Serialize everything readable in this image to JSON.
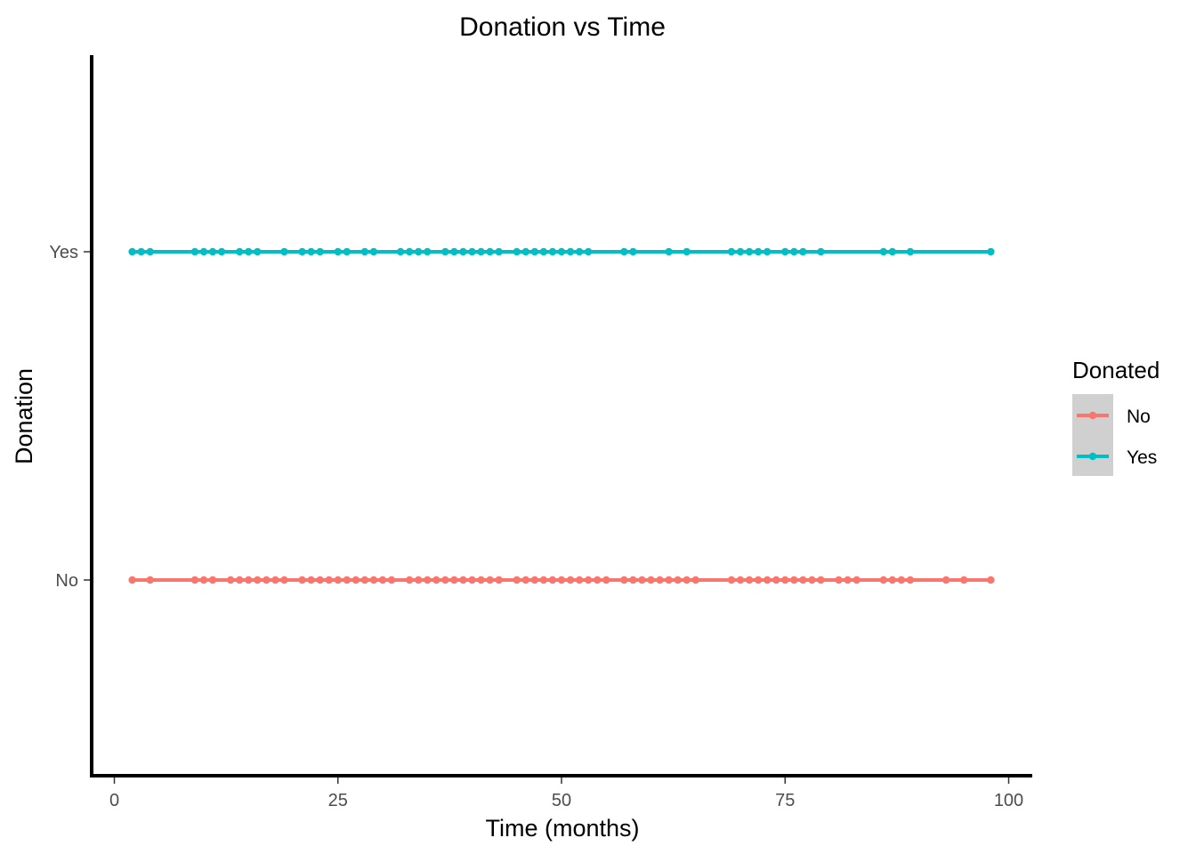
{
  "chart_data": {
    "type": "line",
    "title": "Donation vs Time",
    "xlabel": "Time (months)",
    "ylabel": "Donation",
    "xlim": [
      0,
      100
    ],
    "x_ticks": [
      "0",
      "25",
      "50",
      "75",
      "100"
    ],
    "x_tick_values": [
      0,
      25,
      50,
      75,
      100
    ],
    "categories": [
      "No",
      "Yes"
    ],
    "grid": false,
    "legend": {
      "title": "Donated",
      "position": "right",
      "entries": [
        "No",
        "Yes"
      ]
    },
    "series": [
      {
        "name": "No",
        "category": "No",
        "color": "#F8766D",
        "x": [
          2,
          4,
          9,
          10,
          11,
          13,
          14,
          15,
          16,
          17,
          18,
          19,
          21,
          22,
          23,
          24,
          25,
          26,
          27,
          28,
          29,
          30,
          31,
          33,
          34,
          35,
          36,
          37,
          38,
          39,
          40,
          41,
          42,
          43,
          45,
          46,
          47,
          48,
          49,
          50,
          51,
          52,
          53,
          54,
          55,
          57,
          58,
          59,
          60,
          61,
          62,
          63,
          64,
          65,
          69,
          70,
          71,
          72,
          73,
          74,
          75,
          76,
          77,
          78,
          79,
          81,
          82,
          83,
          86,
          87,
          88,
          89,
          93,
          95,
          98
        ]
      },
      {
        "name": "Yes",
        "category": "Yes",
        "color": "#00BFC4",
        "x": [
          2,
          3,
          4,
          9,
          10,
          11,
          12,
          14,
          15,
          16,
          19,
          21,
          22,
          23,
          25,
          26,
          28,
          29,
          32,
          33,
          34,
          35,
          37,
          38,
          39,
          40,
          41,
          42,
          43,
          45,
          46,
          47,
          48,
          49,
          50,
          51,
          52,
          53,
          57,
          58,
          62,
          64,
          69,
          70,
          71,
          72,
          73,
          75,
          76,
          77,
          79,
          86,
          87,
          89,
          98
        ]
      }
    ]
  }
}
